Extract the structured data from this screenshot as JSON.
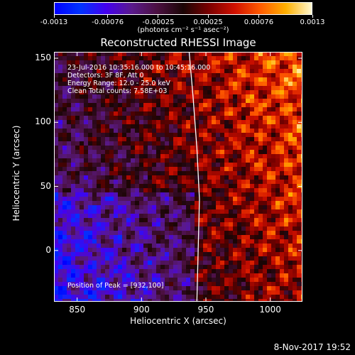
{
  "colorbar": {
    "tick_labels": [
      "-0.0013",
      "-0.00076",
      "-0.00025",
      "0.00025",
      "0.00076",
      "0.0013"
    ],
    "unit_label": "(photons cm⁻² s⁻¹ asec⁻²)"
  },
  "chart_data": {
    "type": "heatmap",
    "title": "Reconstructed RHESSI Image",
    "xlabel": "Heliocentric X (arcsec)",
    "ylabel": "Heliocentric Y (arcsec)",
    "xlim": [
      832,
      1025
    ],
    "ylim": [
      -40,
      155
    ],
    "x_ticks": [
      850,
      900,
      950,
      1000
    ],
    "y_ticks": [
      0,
      50,
      100,
      150
    ],
    "color_range": [
      -0.0013,
      0.0013
    ],
    "annotations": [
      "23-Jul-2016 10:35:16.000 to 10:45:16.000",
      "Detectors: 3F 8F, Att 0",
      "Energy Range: 12.0 - 25.0 keV",
      "Clean    Total counts: 7.58E+03"
    ],
    "peak_label": "Position of Peak = [932,100]",
    "limb_curve": [
      [
        943,
        -40
      ],
      [
        944,
        0
      ],
      [
        945,
        40
      ],
      [
        943,
        80
      ],
      [
        940,
        120
      ],
      [
        937,
        155
      ]
    ]
  },
  "timestamp": "8-Nov-2017 19:52"
}
